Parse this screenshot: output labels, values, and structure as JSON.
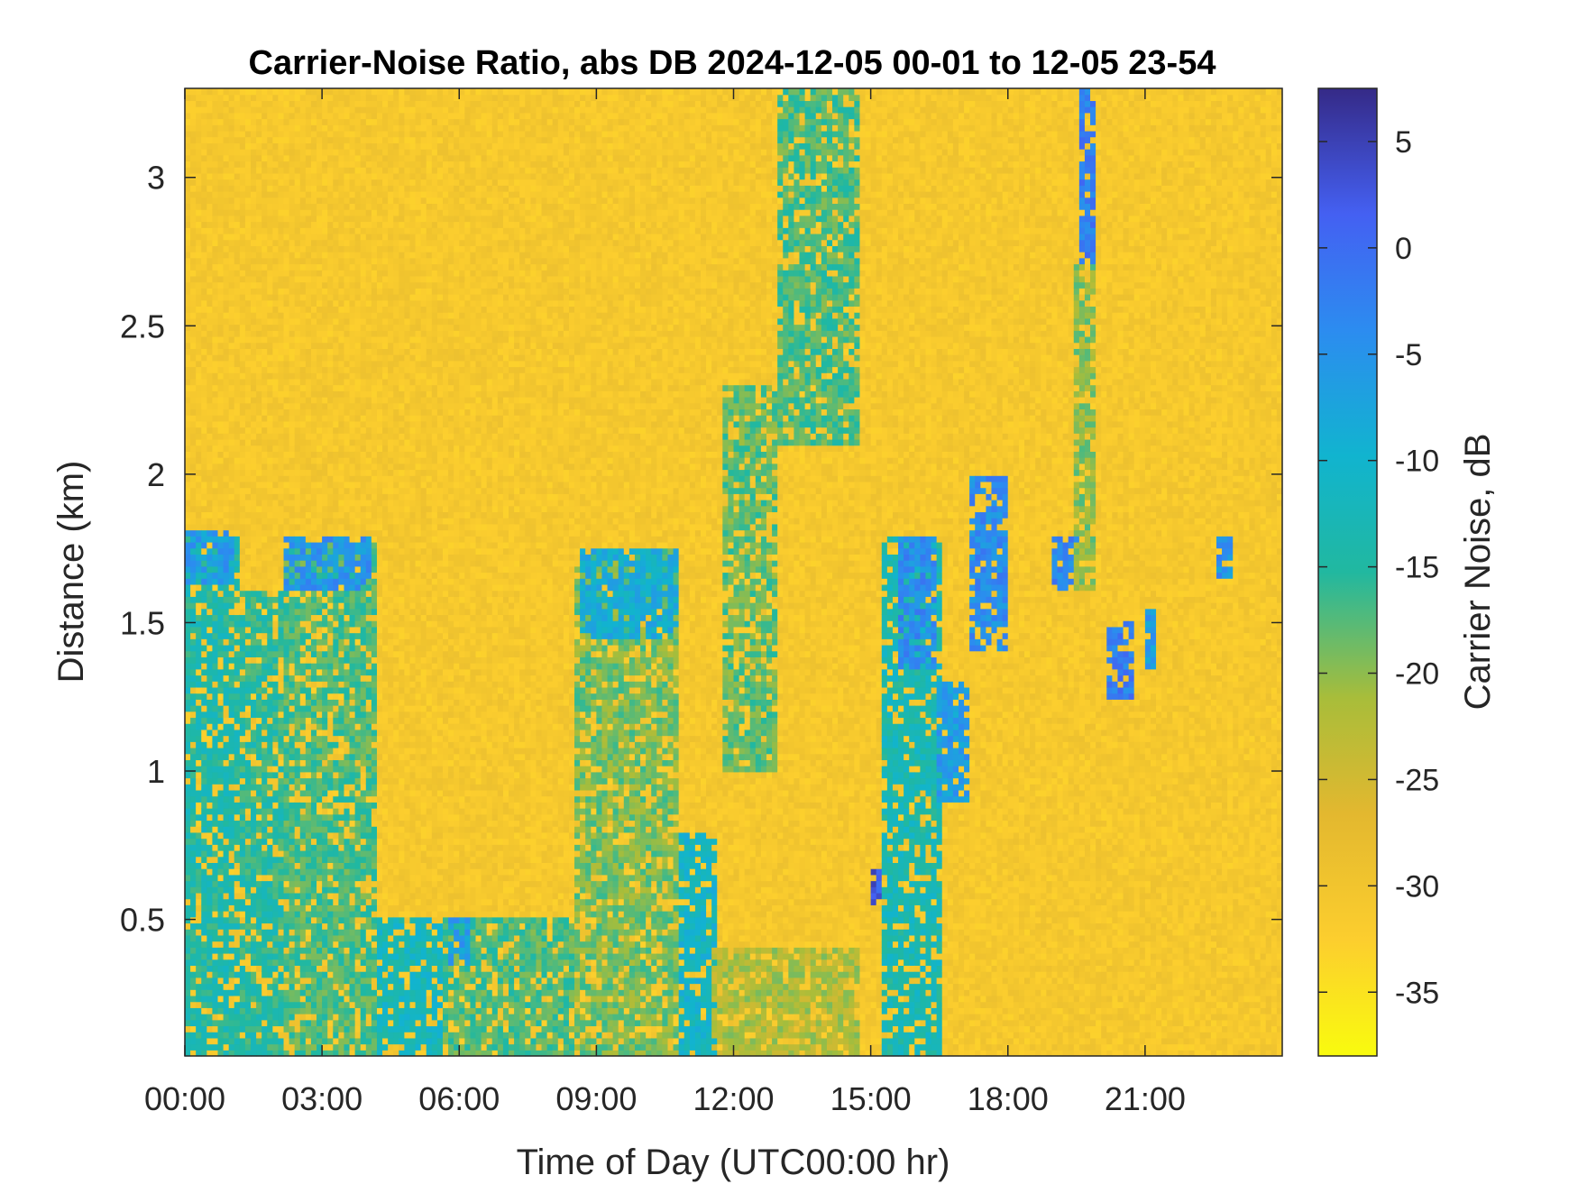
{
  "chart_data": {
    "type": "heatmap",
    "title": "Carrier-Noise Ratio, abs DB 2024-12-05 00-01 to 12-05 23-54",
    "xlabel": "Time of Day (UTC00:00 hr)",
    "ylabel": "Distance (km)",
    "colorbar_label": "Carrier Noise, dB",
    "xlim_hours": [
      0,
      24
    ],
    "x_ticks": [
      {
        "hour": 0,
        "label": "00:00"
      },
      {
        "hour": 3,
        "label": "03:00"
      },
      {
        "hour": 6,
        "label": "06:00"
      },
      {
        "hour": 9,
        "label": "09:00"
      },
      {
        "hour": 12,
        "label": "12:00"
      },
      {
        "hour": 15,
        "label": "15:00"
      },
      {
        "hour": 18,
        "label": "18:00"
      },
      {
        "hour": 21,
        "label": "21:00"
      }
    ],
    "ylim_km": [
      0.04,
      3.3
    ],
    "y_ticks": [
      {
        "value": 0.5,
        "label": "0.5"
      },
      {
        "value": 1,
        "label": "1"
      },
      {
        "value": 1.5,
        "label": "1.5"
      },
      {
        "value": 2,
        "label": "2"
      },
      {
        "value": 2.5,
        "label": "2.5"
      },
      {
        "value": 3,
        "label": "3"
      }
    ],
    "clim_db": [
      -38,
      7.5
    ],
    "colorbar_ticks": [
      {
        "value": 5,
        "label": "5"
      },
      {
        "value": 0,
        "label": "0"
      },
      {
        "value": -5,
        "label": "-5"
      },
      {
        "value": -10,
        "label": "-10"
      },
      {
        "value": -15,
        "label": "-15"
      },
      {
        "value": -20,
        "label": "-20"
      },
      {
        "value": -25,
        "label": "-25"
      },
      {
        "value": -30,
        "label": "-30"
      },
      {
        "value": -35,
        "label": "-35"
      }
    ],
    "colormap": "parula",
    "background_level_db": -31,
    "regions": [
      {
        "hours": [
          0.0,
          1.2
        ],
        "km": [
          0.04,
          1.8
        ],
        "db": -14
      },
      {
        "hours": [
          0.0,
          1.1
        ],
        "km": [
          1.62,
          1.82
        ],
        "db": -6
      },
      {
        "hours": [
          1.2,
          2.2
        ],
        "km": [
          0.04,
          1.6
        ],
        "db": -15
      },
      {
        "hours": [
          2.2,
          4.2
        ],
        "km": [
          0.04,
          1.78
        ],
        "db": -17
      },
      {
        "hours": [
          2.2,
          4.1
        ],
        "km": [
          1.6,
          1.8
        ],
        "db": -5
      },
      {
        "hours": [
          4.2,
          5.6
        ],
        "km": [
          0.04,
          0.5
        ],
        "db": -12
      },
      {
        "hours": [
          5.6,
          8.5
        ],
        "km": [
          0.04,
          0.5
        ],
        "db": -17
      },
      {
        "hours": [
          5.8,
          6.2
        ],
        "km": [
          0.35,
          0.5
        ],
        "db": -6
      },
      {
        "hours": [
          8.5,
          10.8
        ],
        "km": [
          0.04,
          1.75
        ],
        "db": -19
      },
      {
        "hours": [
          8.7,
          10.8
        ],
        "km": [
          1.45,
          1.75
        ],
        "db": -9
      },
      {
        "hours": [
          10.8,
          11.7
        ],
        "km": [
          0.04,
          0.8
        ],
        "db": -11
      },
      {
        "hours": [
          11.5,
          14.8
        ],
        "km": [
          0.04,
          0.4
        ],
        "db": -22
      },
      {
        "hours": [
          11.8,
          13.0
        ],
        "km": [
          1.0,
          2.3
        ],
        "db": -18
      },
      {
        "hours": [
          13.0,
          14.8
        ],
        "km": [
          2.1,
          3.3
        ],
        "db": -17
      },
      {
        "hours": [
          15.0,
          15.2
        ],
        "km": [
          0.55,
          0.68
        ],
        "db": 2
      },
      {
        "hours": [
          15.2,
          16.6
        ],
        "km": [
          0.04,
          1.8
        ],
        "db": -13
      },
      {
        "hours": [
          15.6,
          16.4
        ],
        "km": [
          1.35,
          1.8
        ],
        "db": -4
      },
      {
        "hours": [
          16.4,
          17.2
        ],
        "km": [
          0.9,
          1.3
        ],
        "db": -6
      },
      {
        "hours": [
          17.2,
          18.0
        ],
        "km": [
          1.4,
          2.0
        ],
        "db": -4
      },
      {
        "hours": [
          19.0,
          19.6
        ],
        "km": [
          1.6,
          1.8
        ],
        "db": -3
      },
      {
        "hours": [
          19.6,
          19.9
        ],
        "km": [
          2.7,
          3.3
        ],
        "db": -2
      },
      {
        "hours": [
          19.4,
          19.9
        ],
        "km": [
          1.6,
          2.7
        ],
        "db": -20
      },
      {
        "hours": [
          20.1,
          20.8
        ],
        "km": [
          1.25,
          1.5
        ],
        "db": -2
      },
      {
        "hours": [
          21.0,
          21.3
        ],
        "km": [
          1.35,
          1.55
        ],
        "db": -6
      },
      {
        "hours": [
          22.6,
          22.9
        ],
        "km": [
          1.65,
          1.8
        ],
        "db": -5
      }
    ]
  }
}
